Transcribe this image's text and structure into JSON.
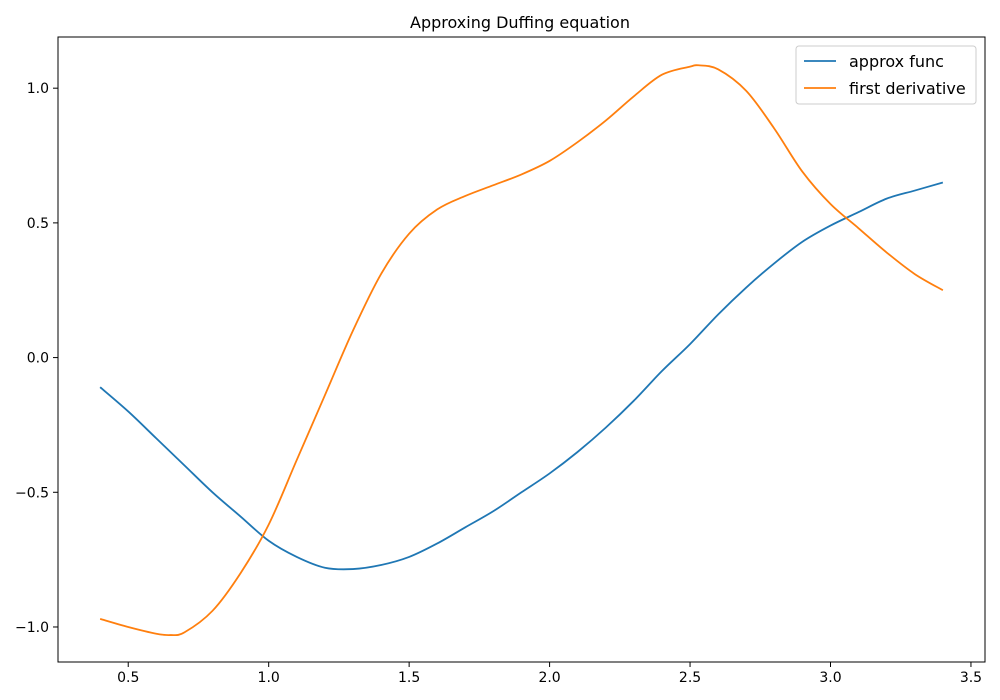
{
  "chart_data": {
    "type": "line",
    "title": "Approxing Duffing equation",
    "xlabel": "",
    "ylabel": "",
    "xlim": [
      0.25,
      3.55
    ],
    "ylim": [
      -1.13,
      1.19
    ],
    "x_ticks": [
      0.5,
      1.0,
      1.5,
      2.0,
      2.5,
      3.0,
      3.5
    ],
    "y_ticks": [
      -1.0,
      -0.5,
      0.0,
      0.5,
      1.0
    ],
    "grid": false,
    "legend_position": "top-right",
    "series": [
      {
        "name": "approx func",
        "color": "#1f77b4",
        "x": [
          0.4,
          0.5,
          0.6,
          0.7,
          0.8,
          0.9,
          1.0,
          1.1,
          1.2,
          1.3,
          1.4,
          1.5,
          1.6,
          1.7,
          1.8,
          1.9,
          2.0,
          2.1,
          2.2,
          2.3,
          2.4,
          2.5,
          2.6,
          2.7,
          2.8,
          2.9,
          3.0,
          3.1,
          3.2,
          3.3,
          3.4
        ],
        "y": [
          -0.11,
          -0.2,
          -0.3,
          -0.4,
          -0.5,
          -0.59,
          -0.68,
          -0.74,
          -0.78,
          -0.785,
          -0.77,
          -0.74,
          -0.69,
          -0.63,
          -0.57,
          -0.5,
          -0.43,
          -0.35,
          -0.26,
          -0.16,
          -0.05,
          0.05,
          0.16,
          0.26,
          0.35,
          0.43,
          0.49,
          0.54,
          0.59,
          0.62,
          0.65
        ]
      },
      {
        "name": "first derivative",
        "color": "#ff7f0e",
        "x": [
          0.4,
          0.5,
          0.6,
          0.65,
          0.7,
          0.8,
          0.9,
          1.0,
          1.1,
          1.2,
          1.3,
          1.4,
          1.5,
          1.6,
          1.7,
          1.8,
          1.9,
          2.0,
          2.1,
          2.2,
          2.3,
          2.4,
          2.5,
          2.53,
          2.6,
          2.7,
          2.8,
          2.9,
          3.0,
          3.1,
          3.2,
          3.3,
          3.4
        ],
        "y": [
          -0.97,
          -1.0,
          -1.025,
          -1.03,
          -1.02,
          -0.94,
          -0.8,
          -0.62,
          -0.38,
          -0.14,
          0.1,
          0.31,
          0.46,
          0.55,
          0.6,
          0.64,
          0.68,
          0.73,
          0.8,
          0.88,
          0.97,
          1.05,
          1.08,
          1.085,
          1.07,
          0.99,
          0.85,
          0.69,
          0.57,
          0.48,
          0.39,
          0.31,
          0.25
        ]
      }
    ]
  }
}
